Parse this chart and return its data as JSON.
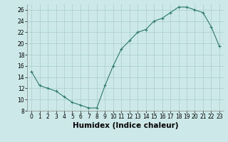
{
  "x": [
    0,
    1,
    2,
    3,
    4,
    5,
    6,
    7,
    8,
    9,
    10,
    11,
    12,
    13,
    14,
    15,
    16,
    17,
    18,
    19,
    20,
    21,
    22,
    23
  ],
  "y": [
    15,
    12.5,
    12,
    11.5,
    10.5,
    9.5,
    9,
    8.5,
    8.5,
    12.5,
    16,
    19,
    20.5,
    22,
    22.5,
    24,
    24.5,
    25.5,
    26.5,
    26.5,
    26,
    25.5,
    23,
    19.5
  ],
  "xlabel": "Humidex (Indice chaleur)",
  "xlim": [
    -0.5,
    23.5
  ],
  "ylim": [
    8,
    27
  ],
  "yticks": [
    8,
    10,
    12,
    14,
    16,
    18,
    20,
    22,
    24,
    26
  ],
  "xticks": [
    0,
    1,
    2,
    3,
    4,
    5,
    6,
    7,
    8,
    9,
    10,
    11,
    12,
    13,
    14,
    15,
    16,
    17,
    18,
    19,
    20,
    21,
    22,
    23
  ],
  "line_color": "#2d7a6a",
  "marker": "+",
  "bg_color": "#cce8e8",
  "grid_color": "#aacccc",
  "tick_fontsize": 5.5,
  "xlabel_fontsize": 7.5
}
